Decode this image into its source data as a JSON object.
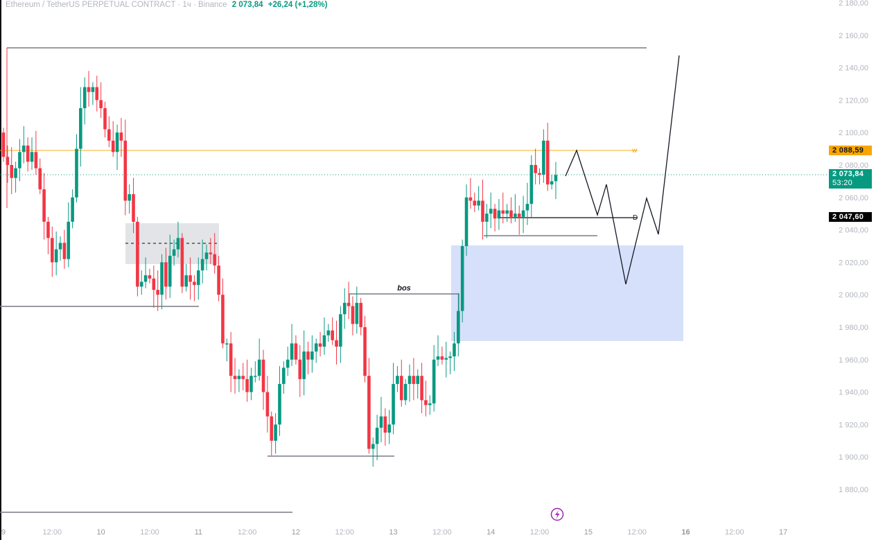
{
  "header": {
    "symbol": "Ethereum / TetherUS PERPETUAL CONTRACT · 1ч · Binance",
    "price": "2 073,84",
    "change": "+26,24 (+1,28%)"
  },
  "price_tags": {
    "level_w": "2 088,59",
    "current": "2 073,84",
    "countdown": "53:20",
    "level_d": "2 047,60"
  },
  "annotations": {
    "bos": "bos",
    "w": "w",
    "d": "D"
  },
  "colors": {
    "up": "#089981",
    "down": "#f23645",
    "level_w": "#f7a600",
    "zone": "#d6e0fa",
    "range": "#e3e4e8"
  },
  "chart_data": {
    "type": "candlestick",
    "title": "Ethereum / TetherUS PERPETUAL CONTRACT · 1ч · Binance",
    "ylim": [
      1870,
      2185
    ],
    "y_ticks": [
      "2 180,00",
      "2 160,00",
      "2 140,00",
      "2 120,00",
      "2 100,00",
      "2 080,00",
      "2 060,00",
      "2 040,00",
      "2 020,00",
      "2 000,00",
      "1 980,00",
      "1 960,00",
      "1 940,00",
      "1 920,00",
      "1 900,00",
      "1 880,00"
    ],
    "y_tick_values": [
      2180,
      2160,
      2140,
      2120,
      2100,
      2080,
      2060,
      2040,
      2020,
      2000,
      1980,
      1960,
      1940,
      1920,
      1900,
      1880
    ],
    "x_ticks": [
      "9",
      "12:00",
      "10",
      "12:00",
      "11",
      "12:00",
      "12",
      "12:00",
      "13",
      "12:00",
      "14",
      "12:00",
      "15",
      "12:00",
      "16",
      "12:00",
      "17"
    ],
    "x_tick_hours": [
      0,
      12,
      24,
      36,
      48,
      60,
      72,
      84,
      96,
      108,
      120,
      132,
      144,
      156,
      168,
      180,
      192
    ],
    "first_open": 2100,
    "closes": [
      2085,
      2080,
      2072,
      2078,
      2088,
      2092,
      2082,
      2088,
      2078,
      2065,
      2045,
      2035,
      2020,
      2028,
      2032,
      2022,
      2045,
      2060,
      2090,
      2115,
      2128,
      2125,
      2128,
      2120,
      2115,
      2102,
      2095,
      2088,
      2100,
      2095,
      2058,
      2062,
      2045,
      2005,
      2008,
      2012,
      2010,
      2003,
      2000,
      2020,
      2005,
      2024,
      2028,
      2035,
      2005,
      2012,
      2008,
      2006,
      2015,
      2022,
      2026,
      2025,
      2018,
      2000,
      1970,
      1970,
      1950,
      1948,
      1950,
      1948,
      1940,
      1950,
      1950,
      1960,
      1940,
      1925,
      1910,
      1920,
      1945,
      1955,
      1960,
      1970,
      1960,
      1948,
      1965,
      1960,
      1965,
      1970,
      1968,
      1975,
      1978,
      1972,
      1968,
      1988,
      1995,
      1993,
      1982,
      1995,
      1980,
      1950,
      1905,
      1908,
      1918,
      1925,
      1915,
      1920,
      1945,
      1950,
      1935,
      1945,
      1950,
      1945,
      1950,
      1935,
      1932,
      1933,
      1960,
      1962,
      1960,
      1961,
      1962,
      1970,
      1990,
      2030,
      2060,
      2058,
      2055,
      2058,
      2045,
      2050,
      2053,
      2047,
      2052,
      2050,
      2052,
      2048,
      2050,
      2048,
      2052,
      2056,
      2080,
      2075,
      2074,
      2095,
      2068,
      2070,
      2073.84
    ],
    "levels": {
      "w": 2088.59,
      "current": 2073.84,
      "d": 2047.6
    }
  }
}
